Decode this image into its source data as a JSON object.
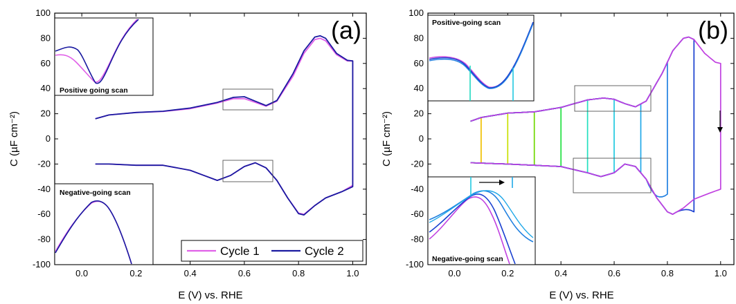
{
  "chart_data": [
    {
      "type": "line",
      "panel_label": "(a)",
      "xlabel": "E (V) vs. RHE",
      "ylabel": "C (µF cm⁻²)",
      "xlim": [
        -0.1,
        1.05
      ],
      "ylim": [
        -100,
        100
      ],
      "xticks": [
        "0.0",
        "0.2",
        "0.4",
        "0.6",
        "0.8",
        "1.0"
      ],
      "yticks": [
        "-100",
        "-80",
        "-60",
        "-40",
        "-20",
        "0",
        "20",
        "40",
        "60",
        "80",
        "100"
      ],
      "legend_position": "bottom-right",
      "series": [
        {
          "name": "Cycle 1",
          "color": "#e060e8",
          "upper": [
            [
              0.05,
              16
            ],
            [
              0.1,
              19
            ],
            [
              0.2,
              21
            ],
            [
              0.3,
              21.8
            ],
            [
              0.4,
              24
            ],
            [
              0.5,
              28.5
            ],
            [
              0.56,
              32
            ],
            [
              0.6,
              32
            ],
            [
              0.64,
              29
            ],
            [
              0.68,
              26
            ],
            [
              0.72,
              30
            ],
            [
              0.78,
              50
            ],
            [
              0.82,
              68
            ],
            [
              0.86,
              79
            ],
            [
              0.88,
              80
            ],
            [
              0.9,
              78
            ],
            [
              0.94,
              67
            ],
            [
              0.98,
              62
            ],
            [
              1.0,
              62
            ]
          ],
          "lower": [
            [
              1.0,
              -37
            ],
            [
              0.96,
              -42
            ],
            [
              0.9,
              -47
            ],
            [
              0.86,
              -53
            ],
            [
              0.82,
              -60
            ],
            [
              0.8,
              -59
            ],
            [
              0.76,
              -47
            ],
            [
              0.72,
              -33
            ],
            [
              0.68,
              -23
            ],
            [
              0.64,
              -19
            ],
            [
              0.6,
              -22
            ],
            [
              0.55,
              -29
            ],
            [
              0.5,
              -33
            ],
            [
              0.45,
              -29
            ],
            [
              0.4,
              -25
            ],
            [
              0.3,
              -21
            ],
            [
              0.2,
              -21
            ],
            [
              0.1,
              -20
            ],
            [
              0.05,
              -20
            ]
          ]
        },
        {
          "name": "Cycle 2",
          "color": "#1a1aa0",
          "upper": [
            [
              0.05,
              16
            ],
            [
              0.1,
              19
            ],
            [
              0.2,
              21
            ],
            [
              0.3,
              22
            ],
            [
              0.4,
              24.5
            ],
            [
              0.5,
              29
            ],
            [
              0.56,
              33
            ],
            [
              0.6,
              33.5
            ],
            [
              0.64,
              30
            ],
            [
              0.68,
              26.5
            ],
            [
              0.72,
              30.5
            ],
            [
              0.78,
              52
            ],
            [
              0.82,
              70
            ],
            [
              0.86,
              81
            ],
            [
              0.88,
              82
            ],
            [
              0.9,
              80
            ],
            [
              0.94,
              68
            ],
            [
              0.98,
              62.5
            ],
            [
              1.0,
              62
            ]
          ],
          "lower": [
            [
              1.0,
              -38
            ],
            [
              0.96,
              -42
            ],
            [
              0.9,
              -47
            ],
            [
              0.86,
              -53
            ],
            [
              0.82,
              -60.5
            ],
            [
              0.8,
              -59.5
            ],
            [
              0.76,
              -47
            ],
            [
              0.72,
              -33
            ],
            [
              0.68,
              -23
            ],
            [
              0.64,
              -19
            ],
            [
              0.6,
              -22
            ],
            [
              0.55,
              -29
            ],
            [
              0.5,
              -33
            ],
            [
              0.45,
              -29
            ],
            [
              0.4,
              -25
            ],
            [
              0.3,
              -21
            ],
            [
              0.2,
              -21
            ],
            [
              0.1,
              -20
            ],
            [
              0.05,
              -20
            ]
          ]
        }
      ],
      "insets": [
        {
          "label": "Positive going scan",
          "zoom_x": [
            0.54,
            0.74
          ],
          "zoom_y": [
            23,
            40
          ]
        },
        {
          "label": "Negative-going scan",
          "zoom_x": [
            0.54,
            0.74
          ],
          "zoom_y": [
            -34,
            -16
          ]
        }
      ]
    },
    {
      "type": "line",
      "panel_label": "(b)",
      "xlabel": "E (V) vs. RHE",
      "ylabel": "C (µF cm⁻²)",
      "xlim": [
        -0.1,
        1.05
      ],
      "ylim": [
        -100,
        100
      ],
      "xticks": [
        "0.0",
        "0.2",
        "0.4",
        "0.6",
        "0.8",
        "1.0"
      ],
      "yticks": [
        "-100",
        "-80",
        "-60",
        "-40",
        "-20",
        "0",
        "20",
        "40",
        "60",
        "80",
        "100"
      ],
      "series": [
        {
          "upper_limit": 0.1,
          "color": "#f0c000"
        },
        {
          "upper_limit": 0.2,
          "color": "#c8e000"
        },
        {
          "upper_limit": 0.3,
          "color": "#70d800"
        },
        {
          "upper_limit": 0.4,
          "color": "#20e040"
        },
        {
          "upper_limit": 0.5,
          "color": "#20e0c0"
        },
        {
          "upper_limit": 0.6,
          "color": "#20c8e0"
        },
        {
          "upper_limit": 0.7,
          "color": "#20a8e8"
        },
        {
          "upper_limit": 0.8,
          "color": "#2080e0"
        },
        {
          "upper_limit": 0.9,
          "color": "#1a40d0"
        },
        {
          "upper_limit": 1.0,
          "color": "#c040e0"
        }
      ],
      "insets": [
        {
          "label": "Positive-going scan",
          "zoom_x": [
            0.46,
            0.74
          ],
          "zoom_y": [
            22,
            44
          ]
        },
        {
          "label": "Negative-going scan",
          "zoom_x": [
            0.46,
            0.74
          ],
          "zoom_y": [
            -42,
            -15
          ]
        }
      ]
    }
  ]
}
